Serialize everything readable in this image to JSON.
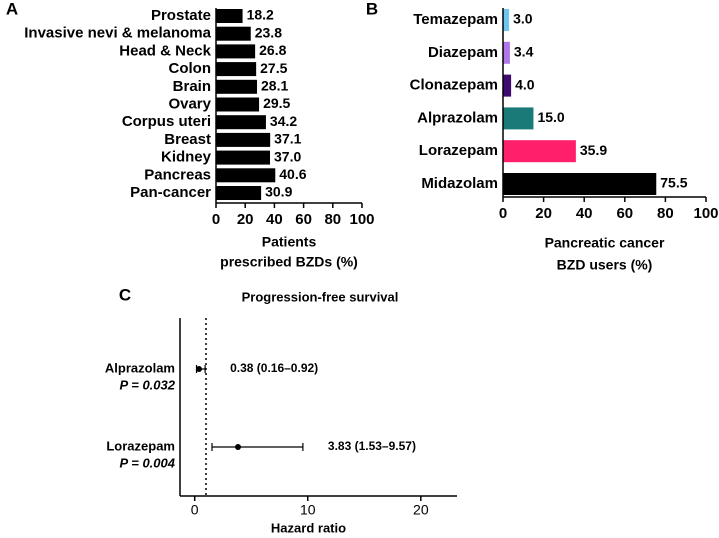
{
  "chart_data": [
    {
      "type": "hbar",
      "panel": "A",
      "categories": [
        "Prostate",
        "Invasive nevi & melanoma",
        "Head & Neck",
        "Colon",
        "Brain",
        "Ovary",
        "Corpus uteri",
        "Breast",
        "Kidney",
        "Pancreas",
        "Pan-cancer"
      ],
      "values": [
        18.2,
        23.8,
        26.8,
        27.5,
        28.1,
        29.5,
        34.2,
        37.1,
        37.0,
        40.6,
        30.9
      ],
      "value_labels": [
        "18.2",
        "23.8",
        "26.8",
        "27.5",
        "28.1",
        "29.5",
        "34.2",
        "37.1",
        "37.0",
        "40.6",
        "30.9"
      ],
      "colors": [
        "#000000",
        "#000000",
        "#000000",
        "#000000",
        "#000000",
        "#000000",
        "#000000",
        "#000000",
        "#000000",
        "#000000",
        "#000000"
      ],
      "xlim": [
        0,
        100
      ],
      "xticks": [
        0,
        20,
        40,
        60,
        80,
        100
      ],
      "x_label": [
        "Patients",
        "prescribed BZDs (%)"
      ]
    },
    {
      "type": "hbar",
      "panel": "B",
      "categories": [
        "Temazepam",
        "Diazepam",
        "Clonazepam",
        "Alprazolam",
        "Lorazepam",
        "Midazolam"
      ],
      "values": [
        3.0,
        3.4,
        4.0,
        15.0,
        35.9,
        75.5
      ],
      "value_labels": [
        "3.0",
        "3.4",
        "4.0",
        "15.0",
        "35.9",
        "75.5"
      ],
      "colors": [
        "#6ec6f0",
        "#b077e8",
        "#3d0c6e",
        "#1a7a78",
        "#ff1f6b",
        "#000000"
      ],
      "xlim": [
        0,
        100
      ],
      "xticks": [
        0,
        20,
        40,
        60,
        80,
        100
      ],
      "x_label": [
        "Pancreatic cancer",
        "BZD users (%)"
      ]
    },
    {
      "type": "forest",
      "panel": "C",
      "title": "Progression-free survival",
      "rows": [
        {
          "name": "Alprazolam",
          "p_label": "P = 0.032",
          "estimate": 0.38,
          "ci": [
            0.16,
            0.92
          ],
          "estimate_label": "0.38 (0.16–0.92)"
        },
        {
          "name": "Lorazepam",
          "p_label": "P = 0.004",
          "estimate": 3.83,
          "ci": [
            1.53,
            9.57
          ],
          "estimate_label": "3.83 (1.53–9.57)"
        }
      ],
      "ref_line": 1,
      "xlim": [
        -1.3,
        23.2
      ],
      "xticks": [
        0,
        10,
        20
      ],
      "x_label": "Hazard ratio"
    }
  ]
}
